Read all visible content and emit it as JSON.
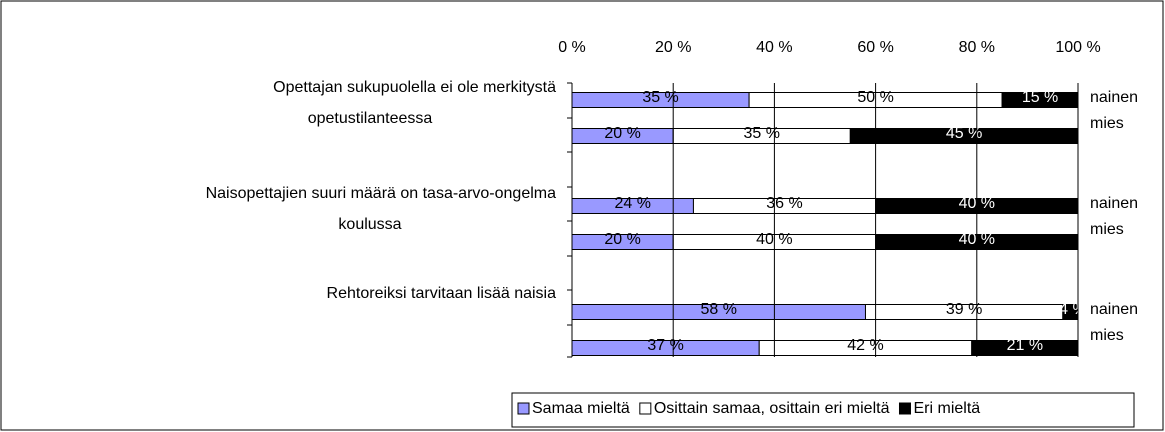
{
  "chart_data": {
    "type": "stacked_barh",
    "groups": [
      {
        "label": [
          "Opettajan sukupuolella ei ole merkitystä",
          "opetustilanteessa"
        ],
        "rows": [
          "nainen",
          "mies"
        ]
      },
      {
        "label": [
          "Naisopettajien suuri määrä on tasa-arvo-ongelma",
          "koulussa"
        ],
        "rows": [
          "nainen",
          "mies"
        ]
      },
      {
        "label": [
          "Rehtoreiksi tarvitaan lisää naisia"
        ],
        "rows": [
          "nainen",
          "mies"
        ]
      }
    ],
    "series": [
      {
        "name": "Samaa mieltä",
        "color": "#9999ff",
        "label_color": "#000000",
        "values": [
          35,
          20,
          24,
          20,
          58,
          37
        ],
        "value_labels": [
          "35 %",
          "20 %",
          "24 %",
          "20 %",
          "58 %",
          "37 %"
        ]
      },
      {
        "name": "Osittain samaa, osittain eri mieltä",
        "color": "#ffffff",
        "label_color": "#000000",
        "values": [
          50,
          35,
          36,
          40,
          39,
          42
        ],
        "value_labels": [
          "50 %",
          "35 %",
          "36 %",
          "40 %",
          "39 %",
          "42 %"
        ]
      },
      {
        "name": "Eri mieltä",
        "color": "#000000",
        "label_color": "#ffffff",
        "values": [
          15,
          45,
          40,
          40,
          4,
          21
        ],
        "value_labels": [
          "15 %",
          "45 %",
          "40 %",
          "40 %",
          "4 %",
          "21 %"
        ]
      }
    ],
    "xlim": [
      0,
      100
    ],
    "xticks": [
      {
        "value": 0,
        "label": "0 %"
      },
      {
        "value": 20,
        "label": "20 %"
      },
      {
        "value": 40,
        "label": "40 %"
      },
      {
        "value": 60,
        "label": "60 %"
      },
      {
        "value": 80,
        "label": "80 %"
      },
      {
        "value": 100,
        "label": "100 %"
      }
    ],
    "grid": true,
    "legend": "bottom"
  }
}
